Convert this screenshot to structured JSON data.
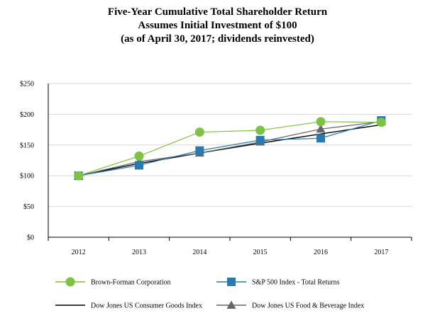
{
  "chart_data": {
    "type": "line",
    "title_lines": [
      "Five-Year Cumulative Total Shareholder Return",
      "Assumes Initial Investment of $100",
      "(as of April 30, 2017; dividends reinvested)"
    ],
    "categories": [
      "2012",
      "2013",
      "2014",
      "2015",
      "2016",
      "2017"
    ],
    "ylim": [
      0,
      250
    ],
    "yticks": [
      0,
      50,
      100,
      150,
      200,
      250
    ],
    "ytick_labels": [
      "$0",
      "$50",
      "$100",
      "$150",
      "$200",
      "$250"
    ],
    "grid": true,
    "legend_position": "bottom",
    "series": [
      {
        "name": "Brown-Forman Corporation",
        "values": [
          100,
          132,
          171,
          174,
          188,
          187
        ],
        "color": "#7dc242",
        "marker": "circle"
      },
      {
        "name": "S&P 500 Index - Total Returns",
        "values": [
          100,
          117,
          141,
          158,
          161,
          190
        ],
        "color": "#2a7ab0",
        "marker": "square"
      },
      {
        "name": "Dow Jones US Consumer Goods Index",
        "values": [
          100,
          120,
          137,
          153,
          168,
          183
        ],
        "color": "#000000",
        "marker": "none"
      },
      {
        "name": "Dow Jones US Food & Beverage Index",
        "values": [
          100,
          123,
          137,
          155,
          176,
          188
        ],
        "color": "#666666",
        "marker": "triangle"
      }
    ]
  }
}
